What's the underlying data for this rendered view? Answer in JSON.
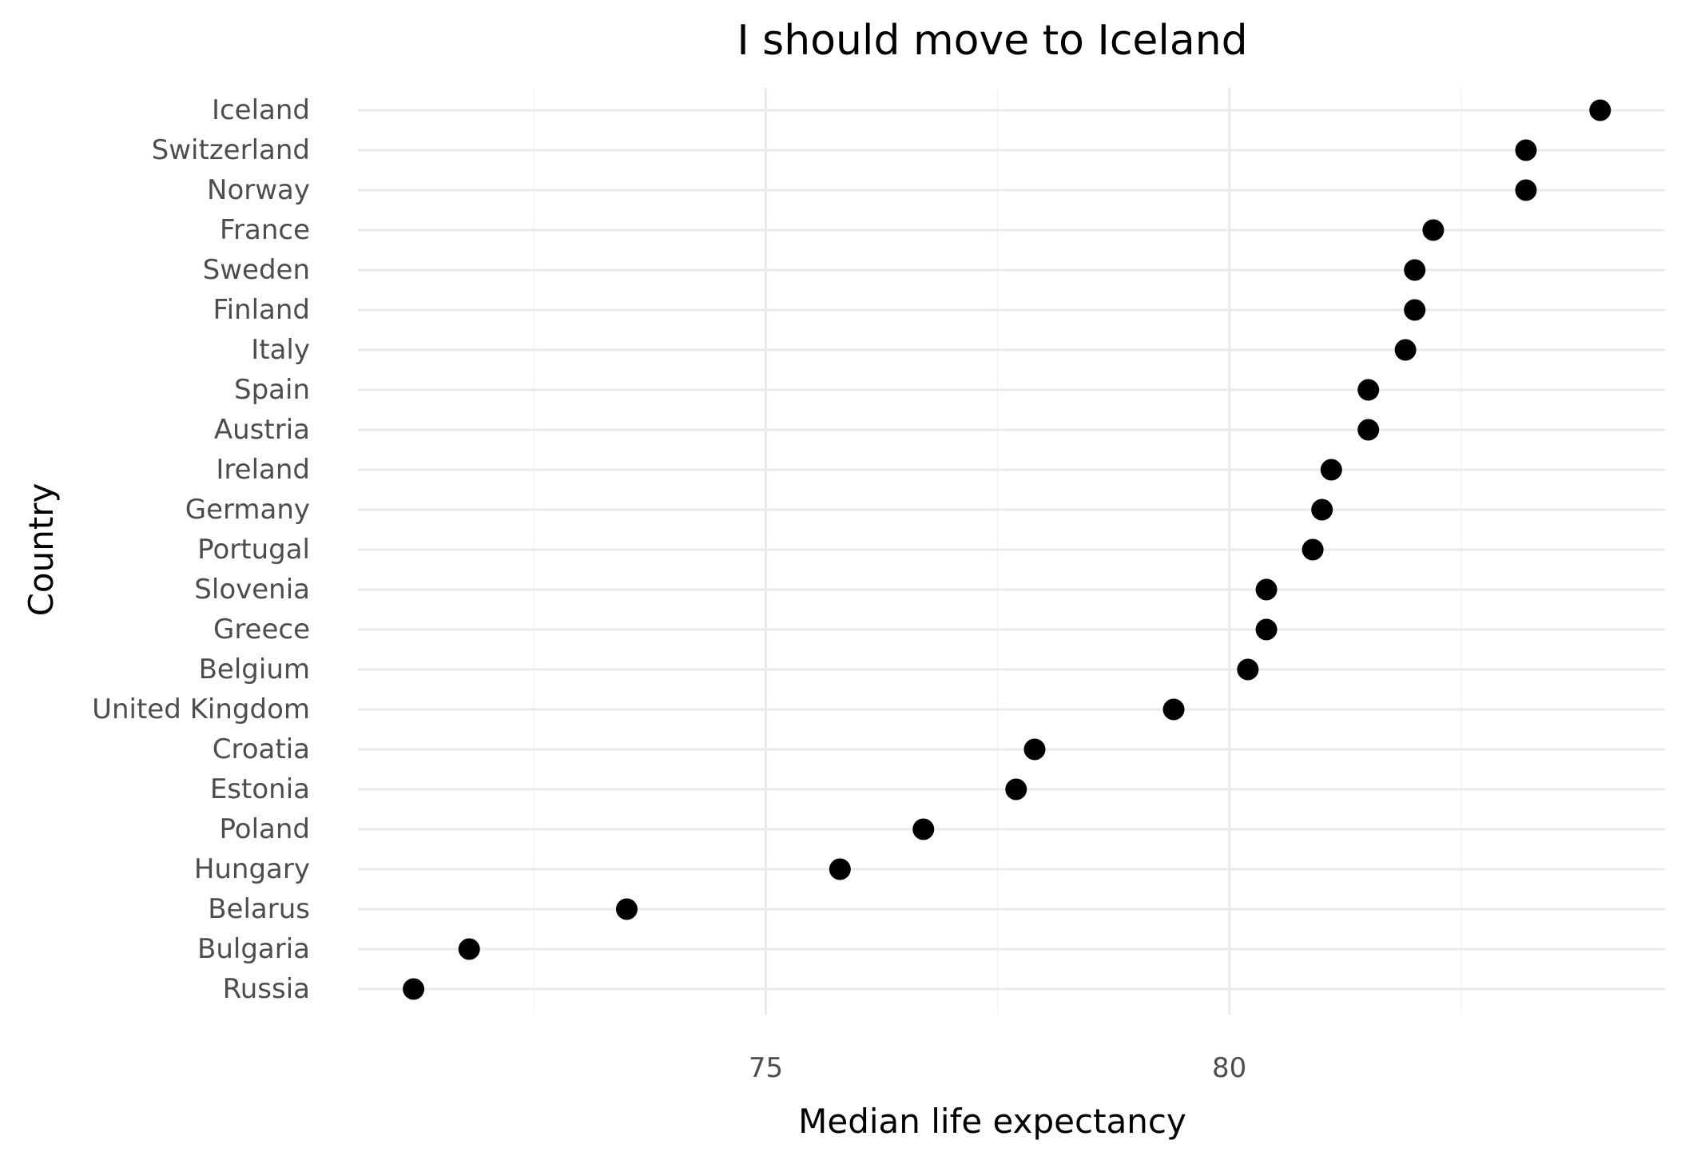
{
  "chart_data": {
    "type": "scatter",
    "title": "I should move to Iceland",
    "xlabel": "Median life expectancy",
    "ylabel": "Country",
    "xlim": [
      70.6,
      84.7
    ],
    "x_ticks": [
      75,
      80
    ],
    "x_minor_ticks": [
      72.5,
      77.5,
      82.5
    ],
    "grid": true,
    "legend": "none",
    "point_color": "#000000",
    "categories": [
      "Iceland",
      "Switzerland",
      "Norway",
      "France",
      "Sweden",
      "Finland",
      "Italy",
      "Spain",
      "Austria",
      "Ireland",
      "Germany",
      "Portugal",
      "Slovenia",
      "Greece",
      "Belgium",
      "United Kingdom",
      "Croatia",
      "Estonia",
      "Poland",
      "Hungary",
      "Belarus",
      "Bulgaria",
      "Russia"
    ],
    "values": [
      84.0,
      83.2,
      83.2,
      82.2,
      82.0,
      82.0,
      81.9,
      81.5,
      81.5,
      81.1,
      81.0,
      80.9,
      80.4,
      80.4,
      80.2,
      79.4,
      77.9,
      77.7,
      76.7,
      75.8,
      73.5,
      71.8,
      71.2
    ]
  }
}
